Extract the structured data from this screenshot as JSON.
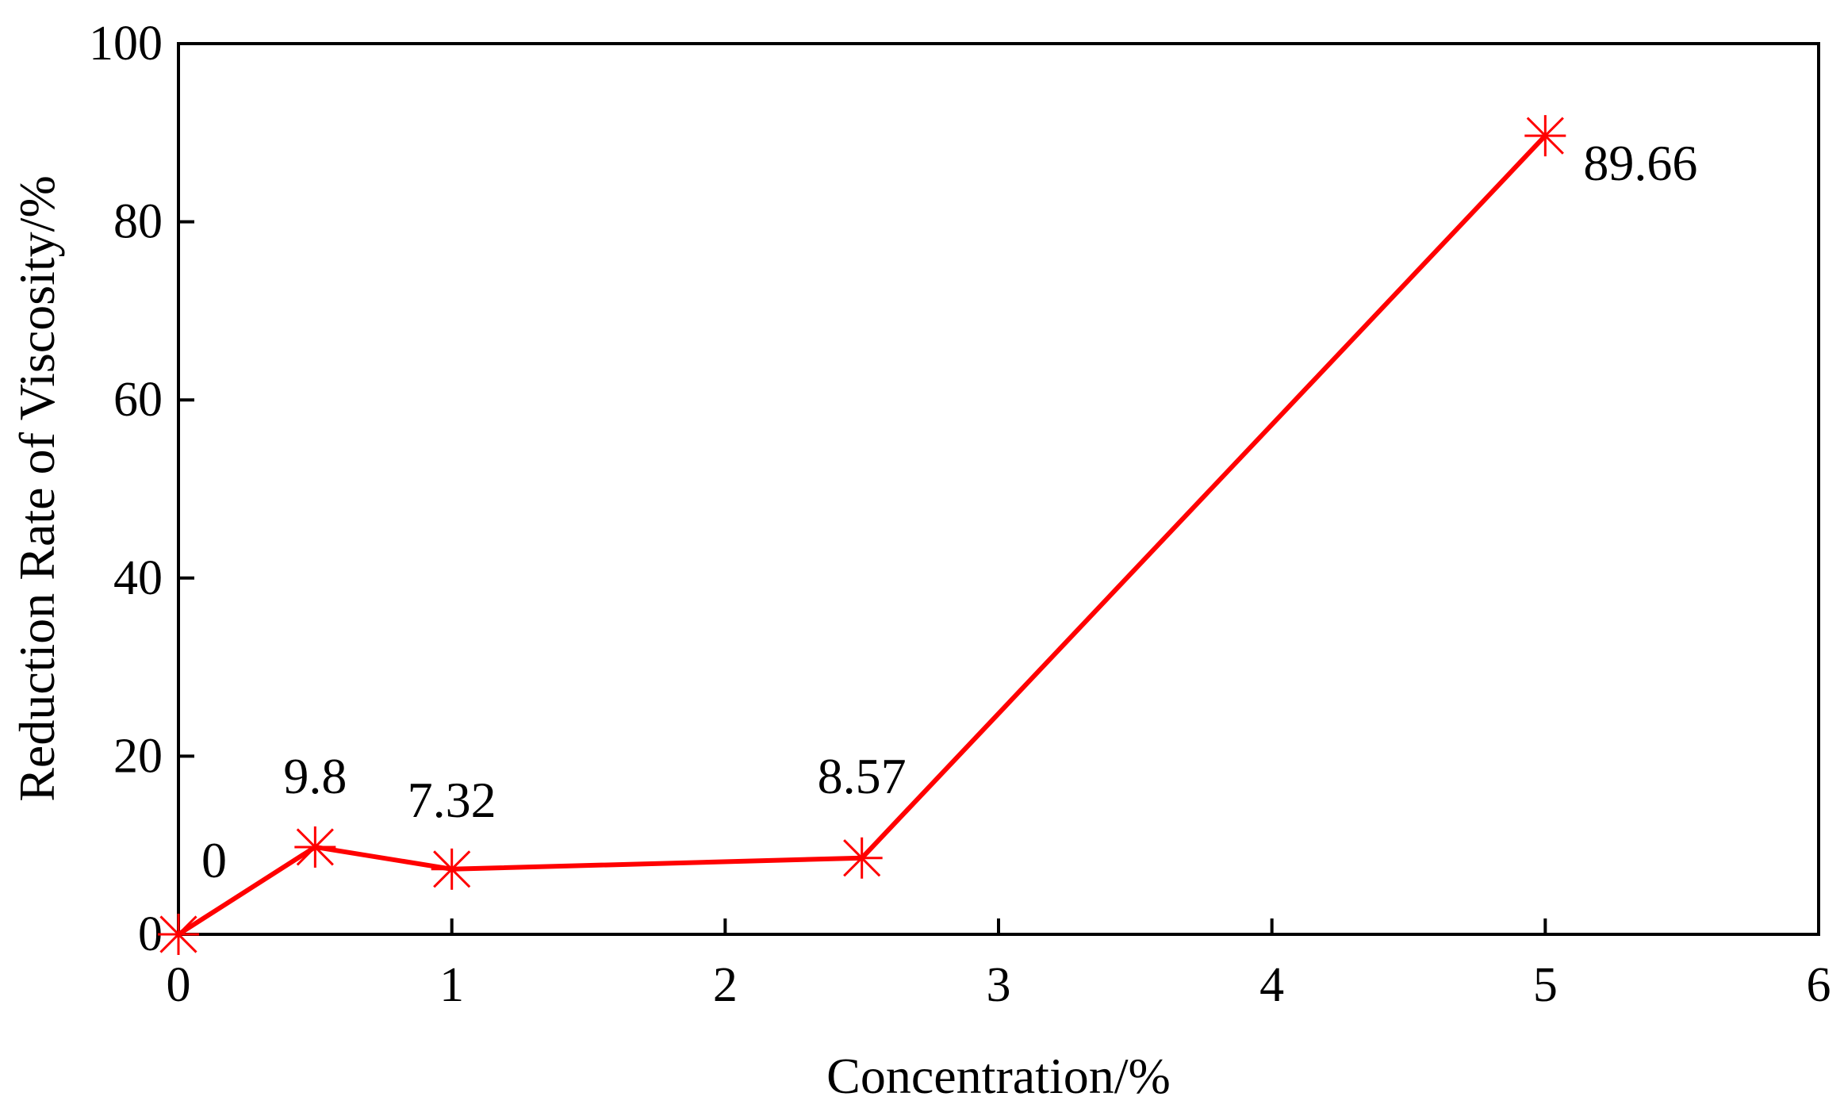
{
  "chart_data": {
    "type": "line",
    "x": [
      0,
      0.5,
      1,
      2.5,
      5
    ],
    "series": [
      {
        "values": [
          0,
          9.8,
          7.32,
          8.57,
          89.66
        ],
        "color": "#ff0000",
        "marker": "asterisk"
      }
    ],
    "data_labels": [
      "0",
      "9.8",
      "7.32",
      "8.57",
      "89.66"
    ],
    "xlabel": "Concentration/%",
    "ylabel": "Reduction Rate of Viscosity/%",
    "xlim": [
      0,
      6
    ],
    "ylim": [
      0,
      100
    ],
    "x_ticks": [
      0,
      1,
      2,
      3,
      4,
      5,
      6
    ],
    "x_tick_labels": [
      "0",
      "1",
      "2",
      "3",
      "4",
      "5",
      "6"
    ],
    "y_ticks": [
      0,
      20,
      40,
      60,
      80,
      100
    ],
    "y_tick_labels": [
      "0",
      "20",
      "40",
      "60",
      "80",
      "100"
    ],
    "grid": false,
    "legend": "none"
  }
}
